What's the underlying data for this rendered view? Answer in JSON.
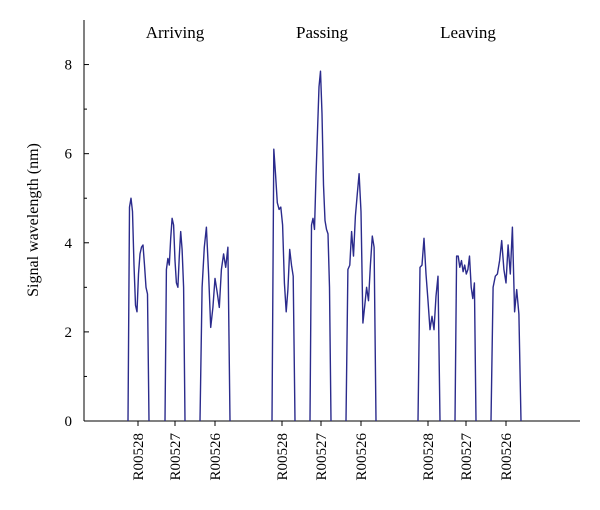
{
  "chart_data": {
    "type": "line",
    "ylabel": "Signal wavelength (nm)",
    "ylim": [
      0,
      9
    ],
    "yticks": [
      "0",
      "2",
      "4",
      "6",
      "8"
    ],
    "groups": [
      {
        "label": "Arriving"
      },
      {
        "label": "Passing"
      },
      {
        "label": "Leaving"
      }
    ],
    "series": [
      {
        "group": 0,
        "sensor": "R00528",
        "values": [
          0,
          4.8,
          5.0,
          4.7,
          3.5,
          2.6,
          2.45,
          3.3,
          3.75,
          3.9,
          3.95,
          3.5,
          3.0,
          2.85,
          0
        ]
      },
      {
        "group": 0,
        "sensor": "R00527",
        "values": [
          0,
          3.4,
          3.65,
          3.5,
          4.1,
          4.55,
          4.4,
          3.6,
          3.1,
          3.0,
          3.7,
          4.25,
          3.85,
          3.0,
          0
        ]
      },
      {
        "group": 0,
        "sensor": "R00526",
        "values": [
          0,
          3.0,
          3.9,
          4.35,
          3.3,
          2.1,
          2.55,
          3.2,
          2.9,
          2.55,
          3.4,
          3.75,
          3.45,
          3.9,
          0
        ]
      },
      {
        "group": 1,
        "sensor": "R00528",
        "values": [
          0,
          6.1,
          5.55,
          4.9,
          4.75,
          4.8,
          4.4,
          3.1,
          2.45,
          2.95,
          3.85,
          3.5,
          3.25,
          0
        ]
      },
      {
        "group": 1,
        "sensor": "R00527",
        "values": [
          0,
          4.4,
          4.55,
          4.3,
          5.5,
          6.5,
          7.5,
          7.85,
          6.9,
          5.3,
          4.5,
          4.3,
          4.2,
          3.0,
          0
        ]
      },
      {
        "group": 1,
        "sensor": "R00526",
        "values": [
          0,
          3.4,
          3.5,
          4.25,
          3.7,
          4.6,
          5.1,
          5.55,
          4.7,
          2.2,
          2.6,
          3.0,
          2.7,
          3.5,
          4.15,
          3.9,
          0
        ]
      },
      {
        "group": 2,
        "sensor": "R00528",
        "values": [
          0,
          3.45,
          3.5,
          4.1,
          3.3,
          2.7,
          2.05,
          2.35,
          2.05,
          2.8,
          3.25,
          0
        ]
      },
      {
        "group": 2,
        "sensor": "R00527",
        "values": [
          0,
          3.7,
          3.7,
          3.45,
          3.6,
          3.35,
          3.5,
          3.3,
          3.4,
          3.7,
          3.0,
          2.75,
          3.1,
          0
        ]
      },
      {
        "group": 2,
        "sensor": "R00526",
        "values": [
          0,
          3.0,
          3.25,
          3.3,
          3.6,
          4.05,
          3.4,
          3.1,
          3.95,
          3.3,
          4.35,
          2.45,
          2.95,
          2.4,
          0
        ]
      }
    ],
    "xticks": [
      "R00528",
      "R00527",
      "R00526",
      "R00528",
      "R00527",
      "R00526",
      "R00528",
      "R00527",
      "R00526"
    ]
  }
}
